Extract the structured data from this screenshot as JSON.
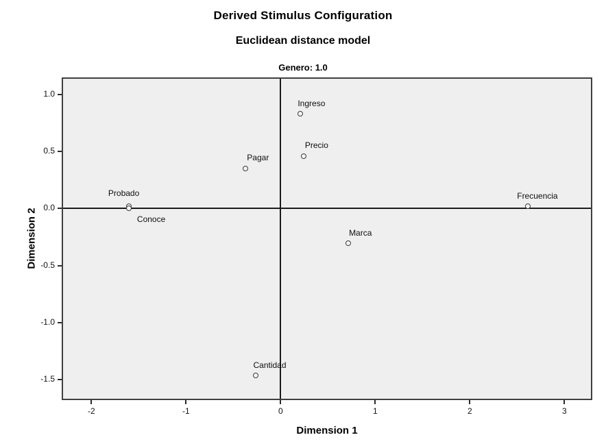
{
  "chart_data": {
    "type": "scatter",
    "title": "Derived Stimulus Configuration",
    "subtitle": "Euclidean distance model",
    "panel_label": "Genero: 1.0",
    "xlabel": "Dimension 1",
    "ylabel": "Dimension 2",
    "xlim": [
      -2.3,
      3.28
    ],
    "ylim": [
      -1.67,
      1.14
    ],
    "grid": false,
    "legend": "none",
    "marker": "open-circle",
    "reference_lines": {
      "x": 0,
      "y": 0
    },
    "x_ticks": [
      {
        "value": -2,
        "label": "-2"
      },
      {
        "value": -1,
        "label": "-1"
      },
      {
        "value": 0,
        "label": "0"
      },
      {
        "value": 1,
        "label": "1"
      },
      {
        "value": 2,
        "label": "2"
      },
      {
        "value": 3,
        "label": "3"
      }
    ],
    "y_ticks": [
      {
        "value": 1.0,
        "label": "1.0"
      },
      {
        "value": 0.5,
        "label": "0.5"
      },
      {
        "value": 0.0,
        "label": "0.0"
      },
      {
        "value": -0.5,
        "label": "-0.5"
      },
      {
        "value": -1.0,
        "label": "-1.0"
      },
      {
        "value": -1.5,
        "label": "-1.5"
      }
    ],
    "points": [
      {
        "label": "Ingreso",
        "x": 0.21,
        "y": 0.83,
        "label_offset": [
          16,
          -16
        ]
      },
      {
        "label": "Precio",
        "x": 0.25,
        "y": 0.46,
        "label_offset": [
          18,
          -16
        ]
      },
      {
        "label": "Pagar",
        "x": -0.37,
        "y": 0.35,
        "label_offset": [
          18,
          -16
        ]
      },
      {
        "label": "Probado",
        "x": -1.6,
        "y": 0.02,
        "label_offset": [
          -8,
          -19
        ]
      },
      {
        "label": "Conoce",
        "x": -1.6,
        "y": 0.0,
        "label_offset": [
          32,
          16
        ]
      },
      {
        "label": "Marca",
        "x": 0.72,
        "y": -0.31,
        "label_offset": [
          17,
          -16
        ]
      },
      {
        "label": "Frecuencia",
        "x": 2.62,
        "y": 0.02,
        "label_offset": [
          13,
          -15
        ]
      },
      {
        "label": "Cantidad",
        "x": -0.26,
        "y": -1.47,
        "label_offset": [
          20,
          -16
        ]
      }
    ],
    "colors": {
      "plot_background": "#efefef",
      "frame_border": "#3f3f3f",
      "axis_line": "#1a1a1a",
      "marker_stroke": "#3a3a3a",
      "text": "#000000"
    }
  }
}
